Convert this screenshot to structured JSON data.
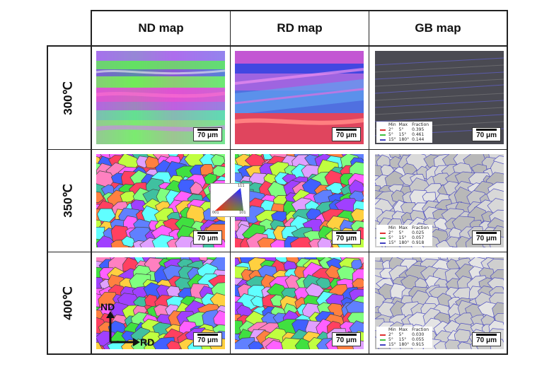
{
  "columns": [
    {
      "label": "ND map"
    },
    {
      "label": "RD map"
    },
    {
      "label": "GB map"
    }
  ],
  "rows": [
    {
      "label": "300℃"
    },
    {
      "label": "350℃"
    },
    {
      "label": "400℃"
    }
  ],
  "scale_bar": "70 μm",
  "gb_legend": {
    "headers": [
      "Min",
      "Max",
      "Fraction"
    ],
    "row_300": [
      {
        "min": "2°",
        "max": "5°",
        "fraction": "0.395",
        "color": "#e03030"
      },
      {
        "min": "5°",
        "max": "15°",
        "fraction": "0.461",
        "color": "#40c040"
      },
      {
        "min": "15°",
        "max": "180°",
        "fraction": "0.144",
        "color": "#4040c0"
      }
    ],
    "row_350": [
      {
        "min": "2°",
        "max": "5°",
        "fraction": "0.025",
        "color": "#e03030"
      },
      {
        "min": "5°",
        "max": "15°",
        "fraction": "0.057",
        "color": "#40c040"
      },
      {
        "min": "15°",
        "max": "180°",
        "fraction": "0.918",
        "color": "#4040c0"
      }
    ],
    "row_400": [
      {
        "min": "2°",
        "max": "5°",
        "fraction": "0.030",
        "color": "#e03030"
      },
      {
        "min": "5°",
        "max": "15°",
        "fraction": "0.055",
        "color": "#40c040"
      },
      {
        "min": "15°",
        "max": "180°",
        "fraction": "0.915",
        "color": "#4040c0"
      }
    ]
  },
  "ipf_key": {
    "corner_001": "001",
    "corner_101": "101",
    "corner_111": "111"
  },
  "axes": {
    "vertical": "ND",
    "horizontal": "RD"
  }
}
